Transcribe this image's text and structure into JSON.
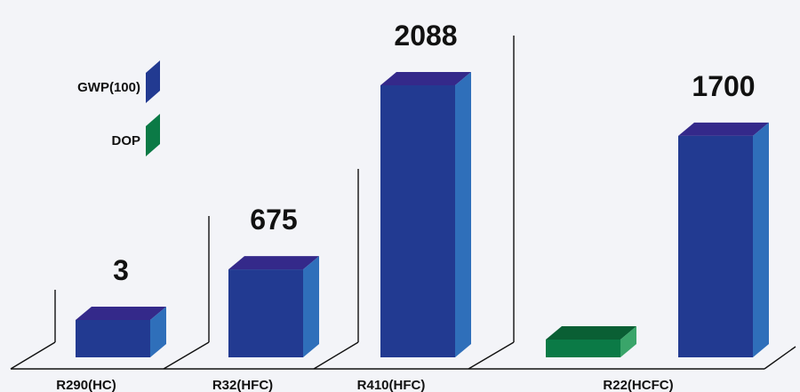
{
  "chart_data": {
    "type": "bar",
    "categories": [
      "R290(HC)",
      "R32(HFC)",
      "R410(HFC)",
      "R22(HCFC)"
    ],
    "series": [
      {
        "name": "GWP(100)",
        "color": "#223a91",
        "values": [
          3,
          675,
          2088,
          1700
        ]
      },
      {
        "name": "DOP",
        "color": "#0b7a46",
        "values": [
          null,
          null,
          null,
          0.055
        ]
      }
    ],
    "data_labels": [
      "3",
      "675",
      "2088",
      "1700"
    ],
    "legend": {
      "placement": "top-left",
      "items": [
        "GWP(100)",
        "DOP"
      ]
    },
    "grid": false,
    "style": "3d",
    "colors": {
      "gwp_front": "#223a91",
      "gwp_top": "#34298a",
      "gwp_side": "#2f6fba",
      "dop_front": "#0b7a46",
      "dop_top": "#0a5f34",
      "dop_side": "#3aa56a",
      "axis": "#111111",
      "background": "#f3f4f8"
    }
  }
}
